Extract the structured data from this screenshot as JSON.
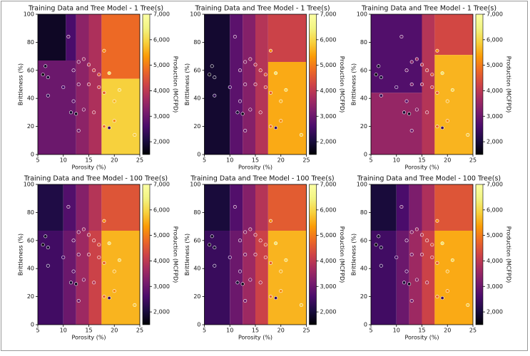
{
  "chart_data": [
    {
      "type": "heatmap",
      "title": "Training Data and Tree Model - 1 Tree(s)",
      "xlabel": "Porosity (%)",
      "ylabel": "Brittleness (%)",
      "colorbar_label": "Production (MCFPD)",
      "colormap": "inferno",
      "xlim": [
        5,
        25
      ],
      "xticks": [
        5,
        10,
        15,
        20,
        25
      ],
      "ylim": [
        0,
        100
      ],
      "yticks": [
        0,
        20,
        40,
        60,
        80,
        100
      ],
      "clim": [
        1500,
        7000
      ],
      "cticks": [
        {
          "value": 2000,
          "label": "2,000"
        },
        {
          "value": 3000,
          "label": "3,000"
        },
        {
          "value": 4000,
          "label": "4,000"
        },
        {
          "value": 5000,
          "label": "5,000"
        },
        {
          "value": 6000,
          "label": "6,000"
        },
        {
          "value": 7000,
          "label": "7,000"
        }
      ],
      "regions": [
        {
          "x0": 5,
          "x1": 10.5,
          "y0": 67,
          "y1": 100,
          "value": 1800
        },
        {
          "x0": 10.5,
          "x1": 12.5,
          "y0": 67,
          "y1": 100,
          "value": 2600
        },
        {
          "x0": 5,
          "x1": 12.5,
          "y0": 0,
          "y1": 67,
          "value": 3000
        },
        {
          "x0": 12.5,
          "x1": 15,
          "y0": 0,
          "y1": 100,
          "value": 3400
        },
        {
          "x0": 15,
          "x1": 17.5,
          "y0": 0,
          "y1": 100,
          "value": 3800
        },
        {
          "x0": 17.5,
          "x1": 25,
          "y0": 54,
          "y1": 100,
          "value": 4800
        },
        {
          "x0": 17.5,
          "x1": 25,
          "y0": 0,
          "y1": 54,
          "value": 5900
        }
      ],
      "x": [
        11,
        18,
        6.5,
        6,
        7,
        7,
        12,
        13,
        14,
        15,
        16,
        17,
        19,
        13,
        15,
        17,
        18,
        20,
        21,
        12,
        14,
        11.5,
        12.5,
        16,
        18,
        19,
        13,
        24,
        20,
        10
      ],
      "y": [
        84,
        74,
        63,
        57,
        55,
        42,
        60,
        66,
        68,
        64,
        60,
        57,
        58,
        50,
        50,
        48,
        44,
        38,
        46,
        38,
        32,
        30,
        29,
        30,
        20,
        19,
        17,
        14,
        24,
        48
      ],
      "values": [
        2900,
        5200,
        1800,
        1600,
        1900,
        2300,
        3000,
        3300,
        3600,
        4000,
        4200,
        4500,
        6200,
        3200,
        3800,
        4300,
        4700,
        5600,
        6000,
        2800,
        3300,
        1900,
        1700,
        3900,
        4800,
        2400,
        3000,
        5800,
        5200,
        2600
      ]
    },
    {
      "type": "heatmap",
      "title": "Training Data and Tree Model - 1 Tree(s)",
      "xlabel": "Porosity (%)",
      "ylabel": "Brittleness (%)",
      "colorbar_label": "Production (MCFPD)",
      "colormap": "inferno",
      "xlim": [
        5,
        25
      ],
      "xticks": [
        5,
        10,
        15,
        20,
        25
      ],
      "ylim": [
        0,
        100
      ],
      "yticks": [
        0,
        20,
        40,
        60,
        80,
        100
      ],
      "clim": [
        1500,
        7000
      ],
      "cticks": [
        {
          "value": 2000,
          "label": "2,000"
        },
        {
          "value": 3000,
          "label": "3,000"
        },
        {
          "value": 4000,
          "label": "4,000"
        },
        {
          "value": 5000,
          "label": "5,000"
        },
        {
          "value": 6000,
          "label": "6,000"
        },
        {
          "value": 7000,
          "label": "7,000"
        }
      ],
      "regions": [
        {
          "x0": 5,
          "x1": 10,
          "y0": 0,
          "y1": 100,
          "value": 1900
        },
        {
          "x0": 10,
          "x1": 12.5,
          "y0": 0,
          "y1": 100,
          "value": 2800
        },
        {
          "x0": 12.5,
          "x1": 15,
          "y0": 0,
          "y1": 100,
          "value": 3300
        },
        {
          "x0": 15,
          "x1": 17.5,
          "y0": 0,
          "y1": 100,
          "value": 3900
        },
        {
          "x0": 17.5,
          "x1": 25,
          "y0": 66,
          "y1": 100,
          "value": 4200
        },
        {
          "x0": 17.5,
          "x1": 25,
          "y0": 0,
          "y1": 66,
          "value": 5500
        }
      ],
      "x": [
        11,
        18,
        6.5,
        6,
        7,
        7,
        12,
        13,
        14,
        15,
        16,
        17,
        19,
        13,
        15,
        17,
        18,
        20,
        21,
        12,
        14,
        11.5,
        12.5,
        16,
        18,
        19,
        13,
        24,
        20,
        10
      ],
      "y": [
        84,
        74,
        63,
        57,
        55,
        42,
        60,
        66,
        68,
        64,
        60,
        57,
        58,
        50,
        50,
        48,
        44,
        38,
        46,
        38,
        32,
        30,
        29,
        30,
        20,
        19,
        17,
        14,
        24,
        48
      ],
      "values": [
        2900,
        5200,
        1800,
        1600,
        1900,
        2300,
        3000,
        3300,
        3600,
        4000,
        4200,
        4500,
        6200,
        3200,
        3800,
        4300,
        4700,
        5600,
        6000,
        2800,
        3300,
        1900,
        1700,
        3900,
        4800,
        2400,
        3000,
        5800,
        5200,
        2600
      ]
    },
    {
      "type": "heatmap",
      "title": "Training Data and Tree Model - 1 Tree(s)",
      "xlabel": "Porosity (%)",
      "ylabel": "Brittleness (%)",
      "colorbar_label": "Production (MCFPD)",
      "colormap": "inferno",
      "xlim": [
        5,
        25
      ],
      "xticks": [
        5,
        10,
        15,
        20,
        25
      ],
      "ylim": [
        0,
        100
      ],
      "yticks": [
        0,
        20,
        40,
        60,
        80,
        100
      ],
      "clim": [
        1500,
        7000
      ],
      "cticks": [
        {
          "value": 2000,
          "label": "2,000"
        },
        {
          "value": 3000,
          "label": "3,000"
        },
        {
          "value": 4000,
          "label": "4,000"
        },
        {
          "value": 5000,
          "label": "5,000"
        },
        {
          "value": 6000,
          "label": "6,000"
        },
        {
          "value": 7000,
          "label": "7,000"
        }
      ],
      "regions": [
        {
          "x0": 5,
          "x1": 15,
          "y0": 44,
          "y1": 100,
          "value": 2700
        },
        {
          "x0": 5,
          "x1": 15,
          "y0": 0,
          "y1": 44,
          "value": 3500
        },
        {
          "x0": 15,
          "x1": 17.5,
          "y0": 0,
          "y1": 100,
          "value": 3900
        },
        {
          "x0": 17.5,
          "x1": 25,
          "y0": 71,
          "y1": 100,
          "value": 4300
        },
        {
          "x0": 17.5,
          "x1": 25,
          "y0": 0,
          "y1": 71,
          "value": 5600
        }
      ],
      "x": [
        11,
        18,
        6.5,
        6,
        7,
        7,
        12,
        13,
        14,
        15,
        16,
        17,
        19,
        13,
        15,
        17,
        18,
        20,
        21,
        12,
        14,
        11.5,
        12.5,
        16,
        18,
        19,
        13,
        24,
        20,
        10
      ],
      "y": [
        84,
        74,
        63,
        57,
        55,
        42,
        60,
        66,
        68,
        64,
        60,
        57,
        58,
        50,
        50,
        48,
        44,
        38,
        46,
        38,
        32,
        30,
        29,
        30,
        20,
        19,
        17,
        14,
        24,
        48
      ],
      "values": [
        2900,
        5200,
        1800,
        1600,
        1900,
        2300,
        3000,
        3300,
        3600,
        4000,
        4200,
        4500,
        6200,
        3200,
        3800,
        4300,
        4700,
        5600,
        6000,
        2800,
        3300,
        1900,
        1700,
        3900,
        4800,
        2400,
        3000,
        5800,
        5200,
        2600
      ]
    },
    {
      "type": "heatmap",
      "title": "Training Data and Tree Model - 100 Tree(s)",
      "xlabel": "Porosity (%)",
      "ylabel": "Brittleness (%)",
      "colorbar_label": "Production (MCFPD)",
      "colormap": "inferno",
      "xlim": [
        5,
        25
      ],
      "xticks": [
        5,
        10,
        15,
        20,
        25
      ],
      "ylim": [
        0,
        100
      ],
      "yticks": [
        0,
        20,
        40,
        60,
        80,
        100
      ],
      "clim": [
        1500,
        7000
      ],
      "cticks": [
        {
          "value": 2000,
          "label": "2,000"
        },
        {
          "value": 3000,
          "label": "3,000"
        },
        {
          "value": 4000,
          "label": "4,000"
        },
        {
          "value": 5000,
          "label": "5,000"
        },
        {
          "value": 6000,
          "label": "6,000"
        },
        {
          "value": 7000,
          "label": "7,000"
        }
      ],
      "regions": [
        {
          "x0": 5,
          "x1": 10,
          "y0": 67,
          "y1": 100,
          "value": 2100
        },
        {
          "x0": 5,
          "x1": 10,
          "y0": 0,
          "y1": 67,
          "value": 2500
        },
        {
          "x0": 10,
          "x1": 12.5,
          "y0": 67,
          "y1": 100,
          "value": 2700
        },
        {
          "x0": 10,
          "x1": 12.5,
          "y0": 0,
          "y1": 67,
          "value": 3000
        },
        {
          "x0": 12.5,
          "x1": 15,
          "y0": 67,
          "y1": 100,
          "value": 3300
        },
        {
          "x0": 12.5,
          "x1": 15,
          "y0": 0,
          "y1": 67,
          "value": 3600
        },
        {
          "x0": 15,
          "x1": 17.5,
          "y0": 67,
          "y1": 100,
          "value": 3900
        },
        {
          "x0": 15,
          "x1": 17.5,
          "y0": 0,
          "y1": 67,
          "value": 4200
        },
        {
          "x0": 17.5,
          "x1": 25,
          "y0": 67,
          "y1": 100,
          "value": 4500
        },
        {
          "x0": 17.5,
          "x1": 25,
          "y0": 0,
          "y1": 67,
          "value": 5600
        }
      ],
      "x": [
        11,
        18,
        6.5,
        6,
        7,
        7,
        12,
        13,
        14,
        15,
        16,
        17,
        19,
        13,
        15,
        17,
        18,
        20,
        21,
        12,
        14,
        11.5,
        12.5,
        16,
        18,
        19,
        13,
        24,
        20,
        10
      ],
      "y": [
        84,
        74,
        63,
        57,
        55,
        42,
        60,
        66,
        68,
        64,
        60,
        57,
        58,
        50,
        50,
        48,
        44,
        38,
        46,
        38,
        32,
        30,
        29,
        30,
        20,
        19,
        17,
        14,
        24,
        48
      ],
      "values": [
        2900,
        5200,
        1800,
        1600,
        1900,
        2300,
        3000,
        3300,
        3600,
        4000,
        4200,
        4500,
        6200,
        3200,
        3800,
        4300,
        4700,
        5600,
        6000,
        2800,
        3300,
        1900,
        1700,
        3900,
        4800,
        2400,
        3000,
        5800,
        5200,
        2600
      ]
    },
    {
      "type": "heatmap",
      "title": "Training Data and Tree Model - 100 Tree(s)",
      "xlabel": "Porosity (%)",
      "ylabel": "Brittleness (%)",
      "colorbar_label": "Production (MCFPD)",
      "colormap": "inferno",
      "xlim": [
        5,
        25
      ],
      "xticks": [
        5,
        10,
        15,
        20,
        25
      ],
      "ylim": [
        0,
        100
      ],
      "yticks": [
        0,
        20,
        40,
        60,
        80,
        100
      ],
      "clim": [
        1500,
        7000
      ],
      "cticks": [
        {
          "value": 2000,
          "label": "2,000"
        },
        {
          "value": 3000,
          "label": "3,000"
        },
        {
          "value": 4000,
          "label": "4,000"
        },
        {
          "value": 5000,
          "label": "5,000"
        },
        {
          "value": 6000,
          "label": "6,000"
        },
        {
          "value": 7000,
          "label": "7,000"
        }
      ],
      "regions": [
        {
          "x0": 5,
          "x1": 10,
          "y0": 67,
          "y1": 100,
          "value": 2000
        },
        {
          "x0": 5,
          "x1": 10,
          "y0": 0,
          "y1": 67,
          "value": 2400
        },
        {
          "x0": 10,
          "x1": 12.5,
          "y0": 67,
          "y1": 100,
          "value": 2700
        },
        {
          "x0": 10,
          "x1": 12.5,
          "y0": 0,
          "y1": 67,
          "value": 3000
        },
        {
          "x0": 12.5,
          "x1": 15,
          "y0": 67,
          "y1": 100,
          "value": 3300
        },
        {
          "x0": 12.5,
          "x1": 15,
          "y0": 0,
          "y1": 67,
          "value": 3600
        },
        {
          "x0": 15,
          "x1": 17.5,
          "y0": 67,
          "y1": 100,
          "value": 3900
        },
        {
          "x0": 15,
          "x1": 17.5,
          "y0": 0,
          "y1": 67,
          "value": 4200
        },
        {
          "x0": 17.5,
          "x1": 25,
          "y0": 67,
          "y1": 100,
          "value": 4600
        },
        {
          "x0": 17.5,
          "x1": 25,
          "y0": 0,
          "y1": 67,
          "value": 5600
        }
      ],
      "x": [
        11,
        18,
        6.5,
        6,
        7,
        7,
        12,
        13,
        14,
        15,
        16,
        17,
        19,
        13,
        15,
        17,
        18,
        20,
        21,
        12,
        14,
        11.5,
        12.5,
        16,
        18,
        19,
        13,
        24,
        20,
        10
      ],
      "y": [
        84,
        74,
        63,
        57,
        55,
        42,
        60,
        66,
        68,
        64,
        60,
        57,
        58,
        50,
        50,
        48,
        44,
        38,
        46,
        38,
        32,
        30,
        29,
        30,
        20,
        19,
        17,
        14,
        24,
        48
      ],
      "values": [
        2900,
        5200,
        1800,
        1600,
        1900,
        2300,
        3000,
        3300,
        3600,
        4000,
        4200,
        4500,
        6200,
        3200,
        3800,
        4300,
        4700,
        5600,
        6000,
        2800,
        3300,
        1900,
        1700,
        3900,
        4800,
        2400,
        3000,
        5800,
        5200,
        2600
      ]
    },
    {
      "type": "heatmap",
      "title": "Training Data and Tree Model - 100 Tree(s)",
      "xlabel": "Porosity (%)",
      "ylabel": "Brittleness (%)",
      "colorbar_label": "Production (MCFPD)",
      "colormap": "inferno",
      "xlim": [
        5,
        25
      ],
      "xticks": [
        5,
        10,
        15,
        20,
        25
      ],
      "ylim": [
        0,
        100
      ],
      "yticks": [
        0,
        20,
        40,
        60,
        80,
        100
      ],
      "clim": [
        1500,
        7000
      ],
      "cticks": [
        {
          "value": 2000,
          "label": "2,000"
        },
        {
          "value": 3000,
          "label": "3,000"
        },
        {
          "value": 4000,
          "label": "4,000"
        },
        {
          "value": 5000,
          "label": "5,000"
        },
        {
          "value": 6000,
          "label": "6,000"
        },
        {
          "value": 7000,
          "label": "7,000"
        }
      ],
      "regions": [
        {
          "x0": 5,
          "x1": 10,
          "y0": 67,
          "y1": 100,
          "value": 2000
        },
        {
          "x0": 5,
          "x1": 10,
          "y0": 0,
          "y1": 67,
          "value": 2500
        },
        {
          "x0": 10,
          "x1": 12.5,
          "y0": 67,
          "y1": 100,
          "value": 2600
        },
        {
          "x0": 10,
          "x1": 12.5,
          "y0": 0,
          "y1": 67,
          "value": 3000
        },
        {
          "x0": 12.5,
          "x1": 15,
          "y0": 67,
          "y1": 100,
          "value": 3200
        },
        {
          "x0": 12.5,
          "x1": 15,
          "y0": 0,
          "y1": 67,
          "value": 3600
        },
        {
          "x0": 15,
          "x1": 17.5,
          "y0": 67,
          "y1": 100,
          "value": 3800
        },
        {
          "x0": 15,
          "x1": 17.5,
          "y0": 0,
          "y1": 67,
          "value": 4200
        },
        {
          "x0": 17.5,
          "x1": 25,
          "y0": 67,
          "y1": 100,
          "value": 4500
        },
        {
          "x0": 17.5,
          "x1": 25,
          "y0": 0,
          "y1": 67,
          "value": 5500
        }
      ],
      "x": [
        11,
        18,
        6.5,
        6,
        7,
        7,
        12,
        13,
        14,
        15,
        16,
        17,
        19,
        13,
        15,
        17,
        18,
        20,
        21,
        12,
        14,
        11.5,
        12.5,
        16,
        18,
        19,
        13,
        24,
        20,
        10
      ],
      "y": [
        84,
        74,
        63,
        57,
        55,
        42,
        60,
        66,
        68,
        64,
        60,
        57,
        58,
        50,
        50,
        48,
        44,
        38,
        46,
        38,
        32,
        30,
        29,
        30,
        20,
        19,
        17,
        14,
        24,
        48
      ],
      "values": [
        2900,
        5200,
        1800,
        1600,
        1900,
        2300,
        3000,
        3300,
        3600,
        4000,
        4200,
        4500,
        6200,
        3200,
        3800,
        4300,
        4700,
        5600,
        6000,
        2800,
        3300,
        1900,
        1700,
        3900,
        4800,
        2400,
        3000,
        5800,
        5200,
        2600
      ]
    }
  ]
}
